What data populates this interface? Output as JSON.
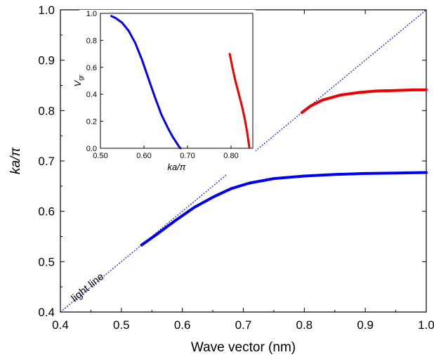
{
  "chart_data": [
    {
      "type": "line",
      "xlabel": "Wave vector (nm)",
      "ylabel": "ka/π",
      "xlim": [
        0.4,
        1.0
      ],
      "ylim": [
        0.4,
        1.0
      ],
      "xticks": [
        "0.4",
        "0.5",
        "0.6",
        "0.7",
        "0.8",
        "0.9",
        "1.0"
      ],
      "yticks": [
        "0.4",
        "0.5",
        "0.6",
        "0.7",
        "0.8",
        "0.9",
        "1.0"
      ],
      "annotation": "light line",
      "series": [
        {
          "color": "#1010cc",
          "style": "dotted",
          "x": [
            0.4,
            1.0
          ],
          "y": [
            0.4,
            1.0
          ]
        },
        {
          "color": "#0000ee",
          "style": "solid",
          "x": [
            0.533,
            0.56,
            0.59,
            0.62,
            0.65,
            0.68,
            0.71,
            0.75,
            0.8,
            0.85,
            0.9,
            0.95,
            1.0
          ],
          "y": [
            0.533,
            0.556,
            0.583,
            0.608,
            0.628,
            0.645,
            0.656,
            0.665,
            0.67,
            0.673,
            0.675,
            0.676,
            0.677
          ]
        },
        {
          "color": "#ee0000",
          "style": "solid",
          "x": [
            0.796,
            0.81,
            0.83,
            0.86,
            0.89,
            0.92,
            0.95,
            0.98,
            1.0
          ],
          "y": [
            0.796,
            0.809,
            0.821,
            0.831,
            0.836,
            0.839,
            0.84,
            0.841,
            0.841
          ]
        }
      ]
    },
    {
      "type": "line",
      "inset": true,
      "xlabel": "ka/π",
      "ylabel": "Vgr",
      "ylabel_main": "V",
      "ylabel_sub": "gr",
      "xlim": [
        0.5,
        0.85
      ],
      "ylim": [
        0.0,
        1.0
      ],
      "xticks": [
        "0.50",
        "0.60",
        "0.70",
        "0.80"
      ],
      "yticks": [
        "0.0",
        "0.2",
        "0.4",
        "0.6",
        "0.8",
        "1.0"
      ],
      "series": [
        {
          "color": "#0000ee",
          "x": [
            0.525,
            0.535,
            0.55,
            0.565,
            0.58,
            0.595,
            0.61,
            0.625,
            0.64,
            0.655,
            0.665,
            0.675,
            0.681,
            0.684
          ],
          "y": [
            0.98,
            0.965,
            0.93,
            0.87,
            0.78,
            0.66,
            0.52,
            0.38,
            0.25,
            0.15,
            0.09,
            0.04,
            0.01,
            0.0
          ]
        },
        {
          "color": "#ee0000",
          "x": [
            0.797,
            0.803,
            0.81,
            0.818,
            0.826,
            0.832,
            0.837,
            0.84,
            0.842
          ],
          "y": [
            0.7,
            0.6,
            0.5,
            0.4,
            0.3,
            0.21,
            0.12,
            0.05,
            0.01
          ]
        }
      ]
    }
  ]
}
